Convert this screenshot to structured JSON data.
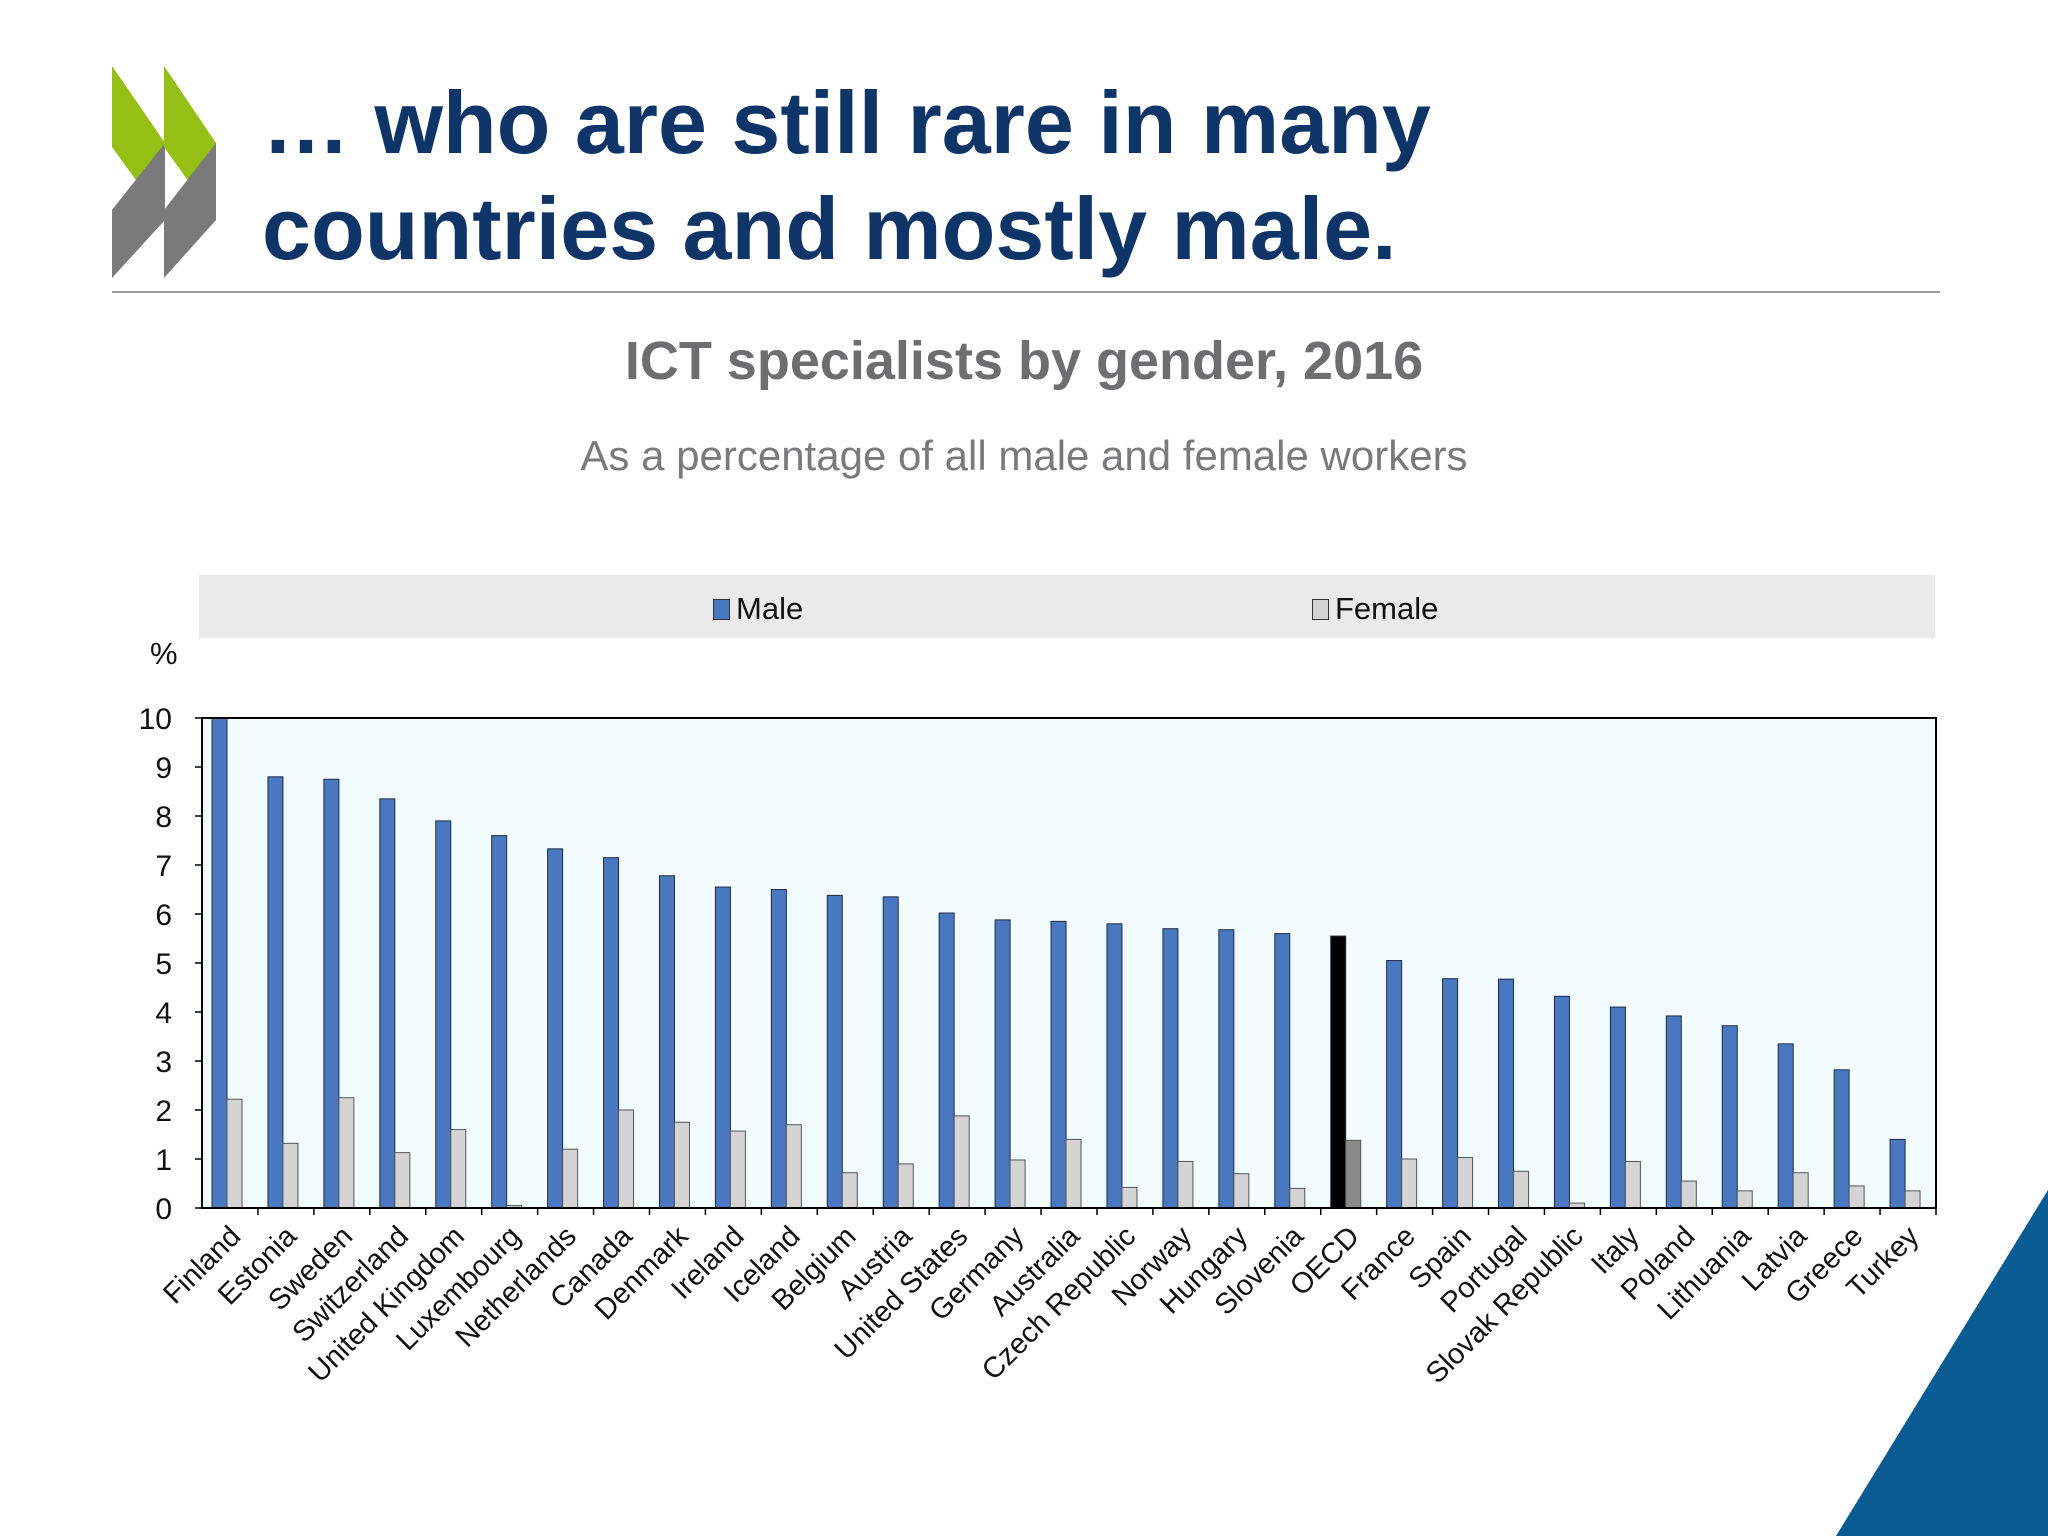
{
  "slide": {
    "title_line1": "… who are still rare in many",
    "title_line2": "countries and mostly male."
  },
  "colors": {
    "title": "#0f3468",
    "logo_green": "#95bf14",
    "logo_grey": "#7a7a7a",
    "corner_blue": "#0a5a94",
    "male_bar": "#4a78c0",
    "female_bar": "#d4d4d4",
    "oecd_male_bar": "#000000",
    "oecd_female_bar": "#8a8a8a",
    "plot_background": "#f2fbfd"
  },
  "chart_data": {
    "type": "bar",
    "title": "ICT specialists by gender, 2016",
    "subtitle": "As a percentage of all male and female workers",
    "unit_label": "%",
    "ylim": [
      0,
      10
    ],
    "yticks": [
      "0",
      "1",
      "2",
      "3",
      "4",
      "5",
      "6",
      "7",
      "8",
      "9",
      "10"
    ],
    "grid": false,
    "legend_position": "top",
    "highlight_category": "OECD",
    "categories": [
      "Finland",
      "Estonia",
      "Sweden",
      "Switzerland",
      "United Kingdom",
      "Luxembourg",
      "Netherlands",
      "Canada",
      "Denmark",
      "Ireland",
      "Iceland",
      "Belgium",
      "Austria",
      "United States",
      "Germany",
      "Australia",
      "Czech Republic",
      "Norway",
      "Hungary",
      "Slovenia",
      "OECD",
      "France",
      "Spain",
      "Portugal",
      "Slovak Republic",
      "Italy",
      "Poland",
      "Lithuania",
      "Latvia",
      "Greece",
      "Turkey"
    ],
    "series": [
      {
        "name": "Male",
        "values": [
          10.0,
          8.8,
          8.75,
          8.35,
          7.9,
          7.6,
          7.33,
          7.15,
          6.78,
          6.55,
          6.5,
          6.38,
          6.35,
          6.02,
          5.88,
          5.85,
          5.8,
          5.7,
          5.68,
          5.6,
          5.55,
          5.05,
          4.68,
          4.67,
          4.32,
          4.1,
          3.92,
          3.72,
          3.35,
          2.82,
          1.4
        ]
      },
      {
        "name": "Female",
        "values": [
          2.22,
          1.32,
          2.25,
          1.13,
          1.6,
          0.05,
          1.2,
          2.0,
          1.75,
          1.57,
          1.7,
          0.72,
          0.9,
          1.88,
          0.98,
          1.4,
          0.42,
          0.95,
          0.7,
          0.4,
          1.38,
          1.0,
          1.03,
          0.75,
          0.1,
          0.95,
          0.55,
          0.35,
          0.72,
          0.45,
          0.35
        ]
      }
    ]
  }
}
